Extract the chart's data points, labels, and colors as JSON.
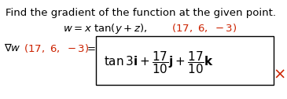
{
  "line1": "Find the gradient of the function at the given point.",
  "bg_color": "#ffffff",
  "text_color": "#000000",
  "red_color": "#cc2200",
  "fig_width": 3.65,
  "fig_height": 1.26,
  "dpi": 100
}
